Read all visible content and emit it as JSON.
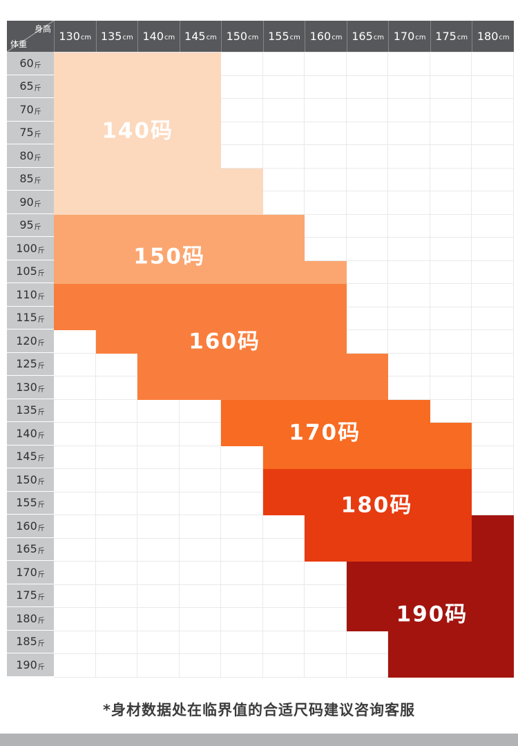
{
  "corner": {
    "top_label": "身高",
    "bottom_label": "体重"
  },
  "chart_data": {
    "type": "heatmap",
    "x_label": "身高",
    "y_label": "体重",
    "x_unit": "cm",
    "y_unit": "斤",
    "x_categories": [
      {
        "v": "130",
        "u": "cm"
      },
      {
        "v": "135",
        "u": "cm"
      },
      {
        "v": "140",
        "u": "cm"
      },
      {
        "v": "145",
        "u": "cm"
      },
      {
        "v": "150",
        "u": "cm"
      },
      {
        "v": "155",
        "u": "cm"
      },
      {
        "v": "160",
        "u": "cm"
      },
      {
        "v": "165",
        "u": "cm"
      },
      {
        "v": "170",
        "u": "cm"
      },
      {
        "v": "175",
        "u": "cm"
      },
      {
        "v": "180",
        "u": "cm"
      }
    ],
    "y_categories": [
      {
        "v": "60",
        "u": "斤"
      },
      {
        "v": "65",
        "u": "斤"
      },
      {
        "v": "70",
        "u": "斤"
      },
      {
        "v": "75",
        "u": "斤"
      },
      {
        "v": "80",
        "u": "斤"
      },
      {
        "v": "85",
        "u": "斤"
      },
      {
        "v": "90",
        "u": "斤"
      },
      {
        "v": "95",
        "u": "斤"
      },
      {
        "v": "100",
        "u": "斤"
      },
      {
        "v": "105",
        "u": "斤"
      },
      {
        "v": "110",
        "u": "斤"
      },
      {
        "v": "115",
        "u": "斤"
      },
      {
        "v": "120",
        "u": "斤"
      },
      {
        "v": "125",
        "u": "斤"
      },
      {
        "v": "130",
        "u": "斤"
      },
      {
        "v": "135",
        "u": "斤"
      },
      {
        "v": "140",
        "u": "斤"
      },
      {
        "v": "145",
        "u": "斤"
      },
      {
        "v": "150",
        "u": "斤"
      },
      {
        "v": "155",
        "u": "斤"
      },
      {
        "v": "160",
        "u": "斤"
      },
      {
        "v": "165",
        "u": "斤"
      },
      {
        "v": "170",
        "u": "斤"
      },
      {
        "v": "175",
        "u": "斤"
      },
      {
        "v": "180",
        "u": "斤"
      },
      {
        "v": "185",
        "u": "斤"
      },
      {
        "v": "190",
        "u": "斤"
      }
    ],
    "regions": [
      {
        "label": "140码",
        "color": "#fcd8bd",
        "spans": [
          {
            "row": 0,
            "cols": [
              0,
              3
            ]
          },
          {
            "row": 1,
            "cols": [
              0,
              3
            ]
          },
          {
            "row": 2,
            "cols": [
              0,
              3
            ]
          },
          {
            "row": 3,
            "cols": [
              0,
              3
            ]
          },
          {
            "row": 4,
            "cols": [
              0,
              3
            ]
          },
          {
            "row": 5,
            "cols": [
              0,
              4
            ]
          },
          {
            "row": 6,
            "cols": [
              0,
              4
            ]
          }
        ],
        "label_pos": {
          "x_pct": 18.2,
          "y_pct": 12.2
        }
      },
      {
        "label": "150码",
        "color": "#fba670",
        "spans": [
          {
            "row": 7,
            "cols": [
              0,
              5
            ]
          },
          {
            "row": 8,
            "cols": [
              0,
              5
            ]
          },
          {
            "row": 9,
            "cols": [
              0,
              6
            ]
          }
        ],
        "label_pos": {
          "x_pct": 25.1,
          "y_pct": 32.3
        }
      },
      {
        "label": "160码",
        "color": "#f97e3d",
        "spans": [
          {
            "row": 10,
            "cols": [
              0,
              6
            ]
          },
          {
            "row": 11,
            "cols": [
              0,
              6
            ]
          },
          {
            "row": 12,
            "cols": [
              1,
              6
            ]
          },
          {
            "row": 13,
            "cols": [
              2,
              7
            ]
          },
          {
            "row": 14,
            "cols": [
              2,
              7
            ]
          }
        ],
        "label_pos": {
          "x_pct": 37.1,
          "y_pct": 45.9
        }
      },
      {
        "label": "170码",
        "color": "#f76b22",
        "spans": [
          {
            "row": 15,
            "cols": [
              4,
              8
            ]
          },
          {
            "row": 16,
            "cols": [
              4,
              9
            ]
          },
          {
            "row": 17,
            "cols": [
              5,
              9
            ]
          }
        ],
        "label_pos": {
          "x_pct": 58.9,
          "y_pct": 60.5
        }
      },
      {
        "label": "180码",
        "color": "#e73b10",
        "spans": [
          {
            "row": 18,
            "cols": [
              5,
              9
            ]
          },
          {
            "row": 19,
            "cols": [
              5,
              9
            ]
          },
          {
            "row": 20,
            "cols": [
              6,
              9
            ]
          },
          {
            "row": 21,
            "cols": [
              6,
              9
            ]
          }
        ],
        "label_pos": {
          "x_pct": 70.2,
          "y_pct": 72.1
        }
      },
      {
        "label": "190码",
        "color": "#a3140f",
        "spans": [
          {
            "row": 20,
            "cols": [
              10,
              10
            ]
          },
          {
            "row": 21,
            "cols": [
              10,
              10
            ]
          },
          {
            "row": 22,
            "cols": [
              7,
              10
            ]
          },
          {
            "row": 23,
            "cols": [
              7,
              10
            ]
          },
          {
            "row": 24,
            "cols": [
              7,
              10
            ]
          },
          {
            "row": 25,
            "cols": [
              8,
              10
            ]
          },
          {
            "row": 26,
            "cols": [
              8,
              10
            ]
          }
        ],
        "label_pos": {
          "x_pct": 82.2,
          "y_pct": 89.6
        }
      }
    ]
  },
  "footnote": "*身材数据处在临界值的合适尺码建议咨询客服"
}
